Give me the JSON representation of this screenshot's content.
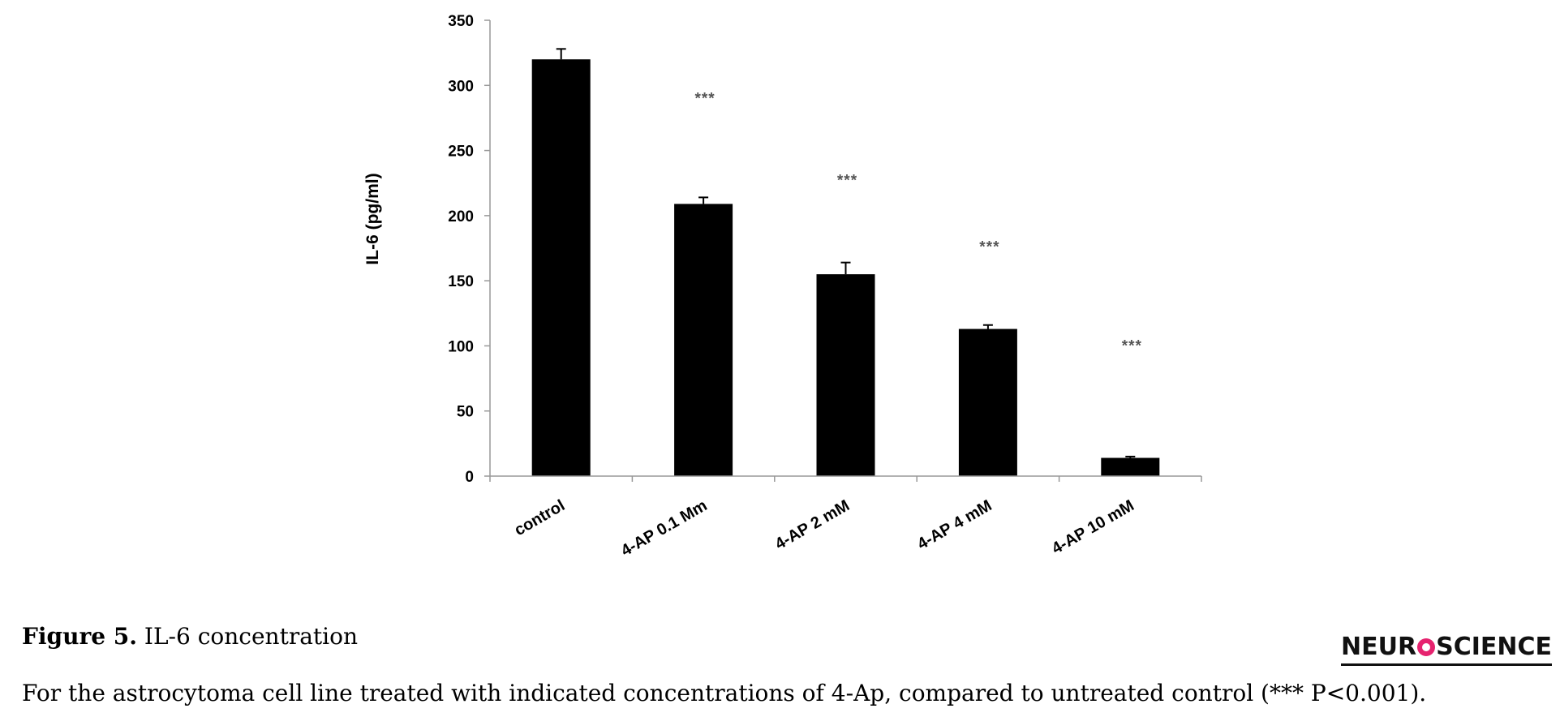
{
  "chart_data": {
    "type": "bar",
    "categories": [
      "control",
      "4-AP 0.1 Mm",
      "4-AP 2 mM",
      "4-AP 4 mM",
      "4-AP 10 mM"
    ],
    "values": [
      320,
      209,
      155,
      113,
      14
    ],
    "errors": [
      8,
      5,
      9,
      3,
      1
    ],
    "significance": [
      "",
      "***",
      "***",
      "***",
      "***"
    ],
    "ylabel": "IL-6 (pg/ml)",
    "xlabel": "",
    "title": "",
    "ylim": [
      0,
      350
    ],
    "yticks": [
      0,
      50,
      100,
      150,
      200,
      250,
      300,
      350
    ],
    "bar_color": "#000000",
    "grid": false
  },
  "caption": {
    "figure_label": "Figure 5.",
    "title": "IL-6 concentration",
    "description": "For the astrocytoma cell line treated with indicated concentrations of 4-Ap, compared to untreated control (*** P<0.001)."
  },
  "logo": {
    "text_left": "NEUR",
    "text_right": "SCIENCE"
  }
}
